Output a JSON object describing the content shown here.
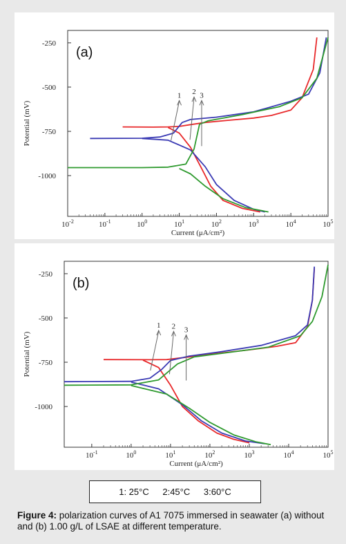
{
  "figure": {
    "caption_label": "Figure 4:",
    "caption_text": "polarization curves of A1 7075 immersed in seawater (a) without and (b) 1.00 g/L of LSAE at different temperature.",
    "legend_items": [
      "1: 25°C",
      "2:45°C",
      "3:60°C"
    ]
  },
  "colors": {
    "series_1": "#e8282a",
    "series_2": "#3a3ab4",
    "series_3": "#2e9a2e",
    "axis": "#333333"
  },
  "chart_data": [
    {
      "type": "line",
      "panel_label": "(a)",
      "xlabel": "Current (μA/cm²)",
      "ylabel": "Potential (mV)",
      "x_scale": "log",
      "xlim": [
        0.01,
        100000
      ],
      "ylim": [
        -1230,
        -180
      ],
      "x_ticks": [
        "10-2",
        "10-1",
        "100",
        "101",
        "102",
        "103",
        "104",
        "105"
      ],
      "y_ticks": [
        -250,
        -500,
        -750,
        -1000
      ],
      "series_labels": [
        {
          "label": "1",
          "x": 10,
          "y": -560
        },
        {
          "label": "2",
          "x": 25,
          "y": -540
        },
        {
          "label": "3",
          "x": 40,
          "y": -560
        }
      ],
      "series": [
        {
          "name": "1",
          "color_key": "series_1",
          "anodic": [
            [
              0.3,
              -725
            ],
            [
              2,
              -726
            ],
            [
              5,
              -725
            ],
            [
              10,
              -722
            ],
            [
              20,
              -712
            ],
            [
              50,
              -700
            ],
            [
              200,
              -688
            ],
            [
              1000,
              -675
            ],
            [
              3000,
              -660
            ],
            [
              10000,
              -630
            ],
            [
              20000,
              -560
            ],
            [
              40000,
              -400
            ],
            [
              50000,
              -220
            ]
          ],
          "cathodic": [
            [
              5,
              -728
            ],
            [
              10,
              -760
            ],
            [
              20,
              -840
            ],
            [
              40,
              -960
            ],
            [
              70,
              -1060
            ],
            [
              150,
              -1140
            ],
            [
              500,
              -1185
            ],
            [
              1500,
              -1205
            ]
          ]
        },
        {
          "name": "2",
          "color_key": "series_2",
          "anodic": [
            [
              0.04,
              -790
            ],
            [
              1,
              -789
            ],
            [
              3,
              -782
            ],
            [
              7,
              -760
            ],
            [
              12,
              -700
            ],
            [
              20,
              -683
            ],
            [
              100,
              -670
            ],
            [
              1000,
              -640
            ],
            [
              10000,
              -580
            ],
            [
              30000,
              -540
            ],
            [
              60000,
              -420
            ],
            [
              90000,
              -220
            ]
          ],
          "cathodic": [
            [
              1,
              -790
            ],
            [
              5,
              -800
            ],
            [
              20,
              -855
            ],
            [
              50,
              -950
            ],
            [
              100,
              -1050
            ],
            [
              300,
              -1140
            ],
            [
              1000,
              -1190
            ],
            [
              2000,
              -1205
            ]
          ]
        },
        {
          "name": "3",
          "color_key": "series_3",
          "anodic": [
            [
              0.01,
              -955
            ],
            [
              1,
              -955
            ],
            [
              5,
              -952
            ],
            [
              15,
              -935
            ],
            [
              25,
              -850
            ],
            [
              35,
              -710
            ],
            [
              60,
              -690
            ],
            [
              500,
              -655
            ],
            [
              5000,
              -610
            ],
            [
              20000,
              -560
            ],
            [
              50000,
              -450
            ],
            [
              100000,
              -220
            ]
          ],
          "cathodic": [
            [
              10,
              -960
            ],
            [
              20,
              -990
            ],
            [
              50,
              -1060
            ],
            [
              150,
              -1130
            ],
            [
              600,
              -1180
            ],
            [
              2500,
              -1205
            ]
          ]
        }
      ]
    },
    {
      "type": "line",
      "panel_label": "(b)",
      "xlabel": "Current (μA/cm²)",
      "ylabel": "Potential (mV)",
      "x_scale": "log",
      "xlim": [
        0.02,
        100000
      ],
      "ylim": [
        -1230,
        -180
      ],
      "x_ticks": [
        "10-1",
        "100",
        "101",
        "102",
        "103",
        "104",
        "105"
      ],
      "y_ticks": [
        -250,
        -500,
        -750,
        -1000
      ],
      "series_labels": [
        {
          "label": "1",
          "x": 5,
          "y": -555
        },
        {
          "label": "2",
          "x": 12,
          "y": -560
        },
        {
          "label": "3",
          "x": 25,
          "y": -580
        }
      ],
      "series": [
        {
          "name": "1",
          "color_key": "series_1",
          "anodic": [
            [
              0.2,
              -735
            ],
            [
              3,
              -736
            ],
            [
              8,
              -735
            ],
            [
              30,
              -720
            ],
            [
              100,
              -705
            ],
            [
              1000,
              -680
            ],
            [
              5000,
              -660
            ],
            [
              15000,
              -640
            ],
            [
              30000,
              -550
            ],
            [
              40000,
              -400
            ],
            [
              45000,
              -220
            ]
          ],
          "cathodic": [
            [
              2,
              -738
            ],
            [
              5,
              -780
            ],
            [
              10,
              -880
            ],
            [
              20,
              -1000
            ],
            [
              50,
              -1080
            ],
            [
              150,
              -1150
            ],
            [
              400,
              -1185
            ],
            [
              1000,
              -1205
            ]
          ]
        },
        {
          "name": "2",
          "color_key": "series_2",
          "anodic": [
            [
              0.02,
              -860
            ],
            [
              1,
              -858
            ],
            [
              3,
              -840
            ],
            [
              6,
              -790
            ],
            [
              10,
              -740
            ],
            [
              30,
              -715
            ],
            [
              200,
              -690
            ],
            [
              2000,
              -655
            ],
            [
              15000,
              -600
            ],
            [
              30000,
              -540
            ],
            [
              40000,
              -400
            ],
            [
              45000,
              -210
            ]
          ],
          "cathodic": [
            [
              1,
              -862
            ],
            [
              5,
              -900
            ],
            [
              20,
              -990
            ],
            [
              60,
              -1080
            ],
            [
              200,
              -1150
            ],
            [
              800,
              -1195
            ],
            [
              2500,
              -1210
            ]
          ]
        },
        {
          "name": "3",
          "color_key": "series_3",
          "anodic": [
            [
              0.02,
              -880
            ],
            [
              1,
              -878
            ],
            [
              5,
              -850
            ],
            [
              15,
              -760
            ],
            [
              40,
              -720
            ],
            [
              300,
              -695
            ],
            [
              3000,
              -665
            ],
            [
              20000,
              -600
            ],
            [
              40000,
              -520
            ],
            [
              70000,
              -380
            ],
            [
              100000,
              -200
            ]
          ],
          "cathodic": [
            [
              1,
              -882
            ],
            [
              8,
              -930
            ],
            [
              30,
              -1010
            ],
            [
              100,
              -1090
            ],
            [
              400,
              -1160
            ],
            [
              1500,
              -1200
            ],
            [
              3500,
              -1215
            ]
          ]
        }
      ]
    }
  ]
}
